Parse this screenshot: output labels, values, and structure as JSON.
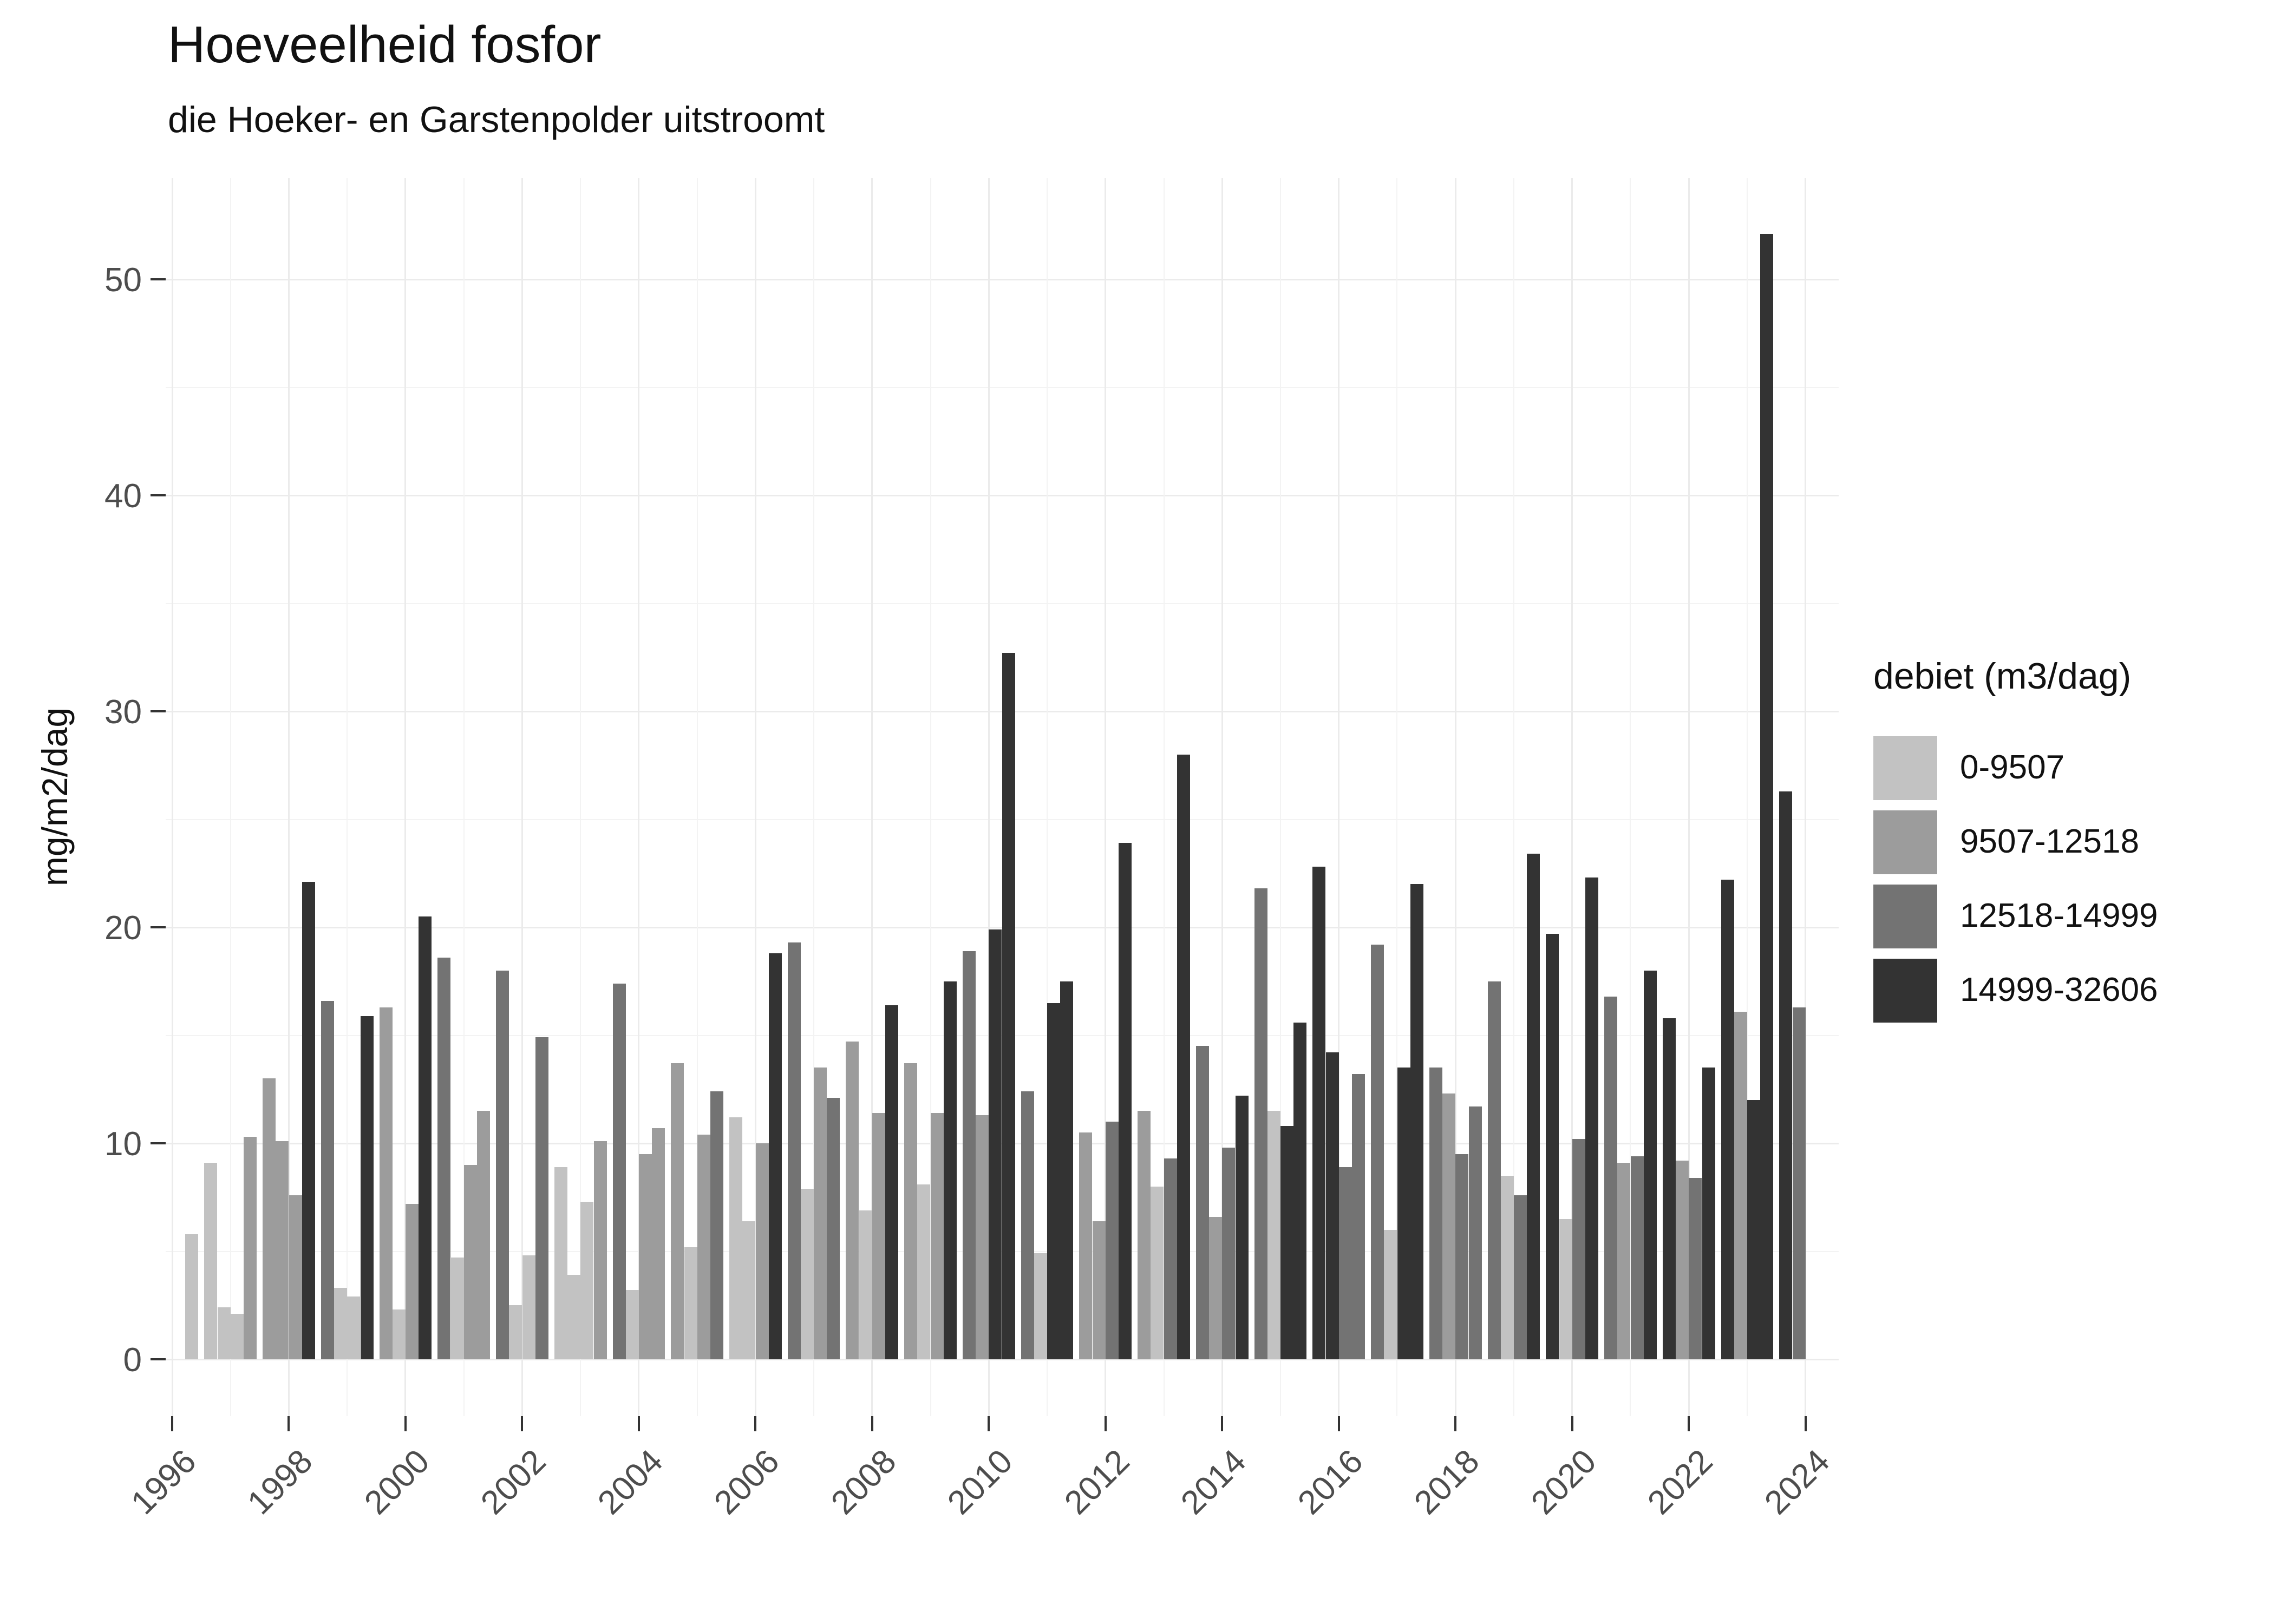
{
  "chart_data": {
    "type": "bar",
    "title": "Hoeveelheid fosfor",
    "subtitle": "die Hoeker- en Garstenpolder uitstroomt",
    "ylabel": "mg/m2/dag",
    "xlabel": "",
    "grid": "on",
    "legend_position": "right",
    "legend_title": "debiet (m3/dag)",
    "legend": {
      "items": [
        {
          "label": "0-9507",
          "color": "#c2c2c2"
        },
        {
          "label": "9507-12518",
          "color": "#9c9c9c"
        },
        {
          "label": "12518-14999",
          "color": "#737373"
        },
        {
          "label": "14999-32606",
          "color": "#333333"
        }
      ]
    },
    "x_ticks": [
      1996,
      1998,
      2000,
      2002,
      2004,
      2006,
      2008,
      2010,
      2012,
      2014,
      2016,
      2018,
      2020,
      2022,
      2024
    ],
    "x_minor": [
      1997,
      1999,
      2001,
      2003,
      2005,
      2007,
      2009,
      2011,
      2013,
      2015,
      2017,
      2019,
      2021,
      2023
    ],
    "y_ticks": [
      0,
      10,
      20,
      30,
      40,
      50
    ],
    "y_minor": [
      5,
      15,
      25,
      35,
      45
    ],
    "ylim": [
      0,
      54.7
    ],
    "xlim": [
      1995.9,
      2024.55
    ],
    "series": [
      {
        "year": 1996,
        "bars": [
          {
            "slot": 3,
            "value": 5.8,
            "cat": 0
          }
        ]
      },
      {
        "year": 1997,
        "bars": [
          {
            "slot": 0,
            "value": 9.1,
            "cat": 0
          },
          {
            "slot": 1,
            "value": 2.4,
            "cat": 0
          },
          {
            "slot": 2,
            "value": 2.1,
            "cat": 0
          },
          {
            "slot": 3,
            "value": 10.3,
            "cat": 1
          }
        ]
      },
      {
        "year": 1998,
        "bars": [
          {
            "slot": 0,
            "value": 13.0,
            "cat": 1
          },
          {
            "slot": 1,
            "value": 10.1,
            "cat": 1
          },
          {
            "slot": 2,
            "value": 7.6,
            "cat": 1
          },
          {
            "slot": 3,
            "value": 22.1,
            "cat": 3
          }
        ]
      },
      {
        "year": 1999,
        "bars": [
          {
            "slot": 0,
            "value": 16.6,
            "cat": 2
          },
          {
            "slot": 1,
            "value": 3.3,
            "cat": 0
          },
          {
            "slot": 2,
            "value": 2.9,
            "cat": 0
          },
          {
            "slot": 3,
            "value": 15.9,
            "cat": 3
          }
        ]
      },
      {
        "year": 2000,
        "bars": [
          {
            "slot": 0,
            "value": 16.3,
            "cat": 1
          },
          {
            "slot": 1,
            "value": 2.3,
            "cat": 0
          },
          {
            "slot": 2,
            "value": 7.2,
            "cat": 1
          },
          {
            "slot": 3,
            "value": 20.5,
            "cat": 3
          }
        ]
      },
      {
        "year": 2001,
        "bars": [
          {
            "slot": 0,
            "value": 18.6,
            "cat": 2
          },
          {
            "slot": 1,
            "value": 4.7,
            "cat": 0
          },
          {
            "slot": 2,
            "value": 9.0,
            "cat": 1
          },
          {
            "slot": 3,
            "value": 11.5,
            "cat": 1
          }
        ]
      },
      {
        "year": 2002,
        "bars": [
          {
            "slot": 0,
            "value": 18.0,
            "cat": 2
          },
          {
            "slot": 1,
            "value": 2.5,
            "cat": 0
          },
          {
            "slot": 2,
            "value": 4.8,
            "cat": 0
          },
          {
            "slot": 3,
            "value": 14.9,
            "cat": 2
          }
        ]
      },
      {
        "year": 2003,
        "bars": [
          {
            "slot": 0,
            "value": 8.9,
            "cat": 0
          },
          {
            "slot": 1,
            "value": 3.9,
            "cat": 0
          },
          {
            "slot": 2,
            "value": 7.3,
            "cat": 0
          },
          {
            "slot": 3,
            "value": 10.1,
            "cat": 1
          }
        ]
      },
      {
        "year": 2004,
        "bars": [
          {
            "slot": 0,
            "value": 17.4,
            "cat": 2
          },
          {
            "slot": 1,
            "value": 3.2,
            "cat": 0
          },
          {
            "slot": 2,
            "value": 9.5,
            "cat": 1
          },
          {
            "slot": 3,
            "value": 10.7,
            "cat": 1
          }
        ]
      },
      {
        "year": 2005,
        "bars": [
          {
            "slot": 0,
            "value": 13.7,
            "cat": 1
          },
          {
            "slot": 1,
            "value": 5.2,
            "cat": 0
          },
          {
            "slot": 2,
            "value": 10.4,
            "cat": 1
          },
          {
            "slot": 3,
            "value": 12.4,
            "cat": 2
          }
        ]
      },
      {
        "year": 2006,
        "bars": [
          {
            "slot": 0,
            "value": 11.2,
            "cat": 0
          },
          {
            "slot": 1,
            "value": 6.4,
            "cat": 0
          },
          {
            "slot": 2,
            "value": 10.0,
            "cat": 1
          },
          {
            "slot": 3,
            "value": 18.8,
            "cat": 3
          }
        ]
      },
      {
        "year": 2007,
        "bars": [
          {
            "slot": 0,
            "value": 19.3,
            "cat": 2
          },
          {
            "slot": 1,
            "value": 7.9,
            "cat": 0
          },
          {
            "slot": 2,
            "value": 13.5,
            "cat": 1
          },
          {
            "slot": 3,
            "value": 12.1,
            "cat": 2
          }
        ]
      },
      {
        "year": 2008,
        "bars": [
          {
            "slot": 0,
            "value": 14.7,
            "cat": 1
          },
          {
            "slot": 1,
            "value": 6.9,
            "cat": 0
          },
          {
            "slot": 2,
            "value": 11.4,
            "cat": 1
          },
          {
            "slot": 3,
            "value": 16.4,
            "cat": 3
          }
        ]
      },
      {
        "year": 2009,
        "bars": [
          {
            "slot": 0,
            "value": 13.7,
            "cat": 1
          },
          {
            "slot": 1,
            "value": 8.1,
            "cat": 0
          },
          {
            "slot": 2,
            "value": 11.4,
            "cat": 1
          },
          {
            "slot": 3,
            "value": 17.5,
            "cat": 3
          }
        ]
      },
      {
        "year": 2010,
        "bars": [
          {
            "slot": 0,
            "value": 18.9,
            "cat": 2
          },
          {
            "slot": 1,
            "value": 11.3,
            "cat": 1
          },
          {
            "slot": 2,
            "value": 19.9,
            "cat": 3
          },
          {
            "slot": 3,
            "value": 32.7,
            "cat": 3
          }
        ]
      },
      {
        "year": 2011,
        "bars": [
          {
            "slot": 0,
            "value": 12.4,
            "cat": 2
          },
          {
            "slot": 1,
            "value": 4.9,
            "cat": 0
          },
          {
            "slot": 2,
            "value": 16.5,
            "cat": 3
          },
          {
            "slot": 3,
            "value": 17.5,
            "cat": 3
          }
        ]
      },
      {
        "year": 2012,
        "bars": [
          {
            "slot": 0,
            "value": 10.5,
            "cat": 1
          },
          {
            "slot": 1,
            "value": 6.4,
            "cat": 1
          },
          {
            "slot": 2,
            "value": 11.0,
            "cat": 2
          },
          {
            "slot": 3,
            "value": 23.9,
            "cat": 3
          }
        ]
      },
      {
        "year": 2013,
        "bars": [
          {
            "slot": 0,
            "value": 11.5,
            "cat": 1
          },
          {
            "slot": 1,
            "value": 8.0,
            "cat": 0
          },
          {
            "slot": 2,
            "value": 9.3,
            "cat": 2
          },
          {
            "slot": 3,
            "value": 28.0,
            "cat": 3
          }
        ]
      },
      {
        "year": 2014,
        "bars": [
          {
            "slot": 0,
            "value": 14.5,
            "cat": 2
          },
          {
            "slot": 1,
            "value": 6.6,
            "cat": 1
          },
          {
            "slot": 2,
            "value": 9.8,
            "cat": 2
          },
          {
            "slot": 3,
            "value": 12.2,
            "cat": 3
          }
        ]
      },
      {
        "year": 2015,
        "bars": [
          {
            "slot": 0,
            "value": 21.8,
            "cat": 2
          },
          {
            "slot": 1,
            "value": 11.5,
            "cat": 0
          },
          {
            "slot": 2,
            "value": 10.8,
            "cat": 3
          },
          {
            "slot": 3,
            "value": 15.6,
            "cat": 3
          }
        ]
      },
      {
        "year": 2016,
        "bars": [
          {
            "slot": 0,
            "value": 22.8,
            "cat": 3
          },
          {
            "slot": 1,
            "value": 14.2,
            "cat": 3
          },
          {
            "slot": 2,
            "value": 8.9,
            "cat": 2
          },
          {
            "slot": 3,
            "value": 13.2,
            "cat": 2
          }
        ]
      },
      {
        "year": 2017,
        "bars": [
          {
            "slot": 0,
            "value": 19.2,
            "cat": 2
          },
          {
            "slot": 1,
            "value": 6.0,
            "cat": 0
          },
          {
            "slot": 2,
            "value": 13.5,
            "cat": 3
          },
          {
            "slot": 3,
            "value": 22.0,
            "cat": 3
          }
        ]
      },
      {
        "year": 2018,
        "bars": [
          {
            "slot": 0,
            "value": 13.5,
            "cat": 2
          },
          {
            "slot": 1,
            "value": 12.3,
            "cat": 1
          },
          {
            "slot": 2,
            "value": 9.5,
            "cat": 2
          },
          {
            "slot": 3,
            "value": 11.7,
            "cat": 2
          }
        ]
      },
      {
        "year": 2019,
        "bars": [
          {
            "slot": 0,
            "value": 17.5,
            "cat": 2
          },
          {
            "slot": 1,
            "value": 8.5,
            "cat": 0
          },
          {
            "slot": 2,
            "value": 7.6,
            "cat": 2
          },
          {
            "slot": 3,
            "value": 23.4,
            "cat": 3
          }
        ]
      },
      {
        "year": 2020,
        "bars": [
          {
            "slot": 0,
            "value": 19.7,
            "cat": 3
          },
          {
            "slot": 1,
            "value": 6.5,
            "cat": 0
          },
          {
            "slot": 2,
            "value": 10.2,
            "cat": 2
          },
          {
            "slot": 3,
            "value": 22.3,
            "cat": 3
          }
        ]
      },
      {
        "year": 2021,
        "bars": [
          {
            "slot": 0,
            "value": 16.8,
            "cat": 2
          },
          {
            "slot": 1,
            "value": 9.1,
            "cat": 1
          },
          {
            "slot": 2,
            "value": 9.4,
            "cat": 2
          },
          {
            "slot": 3,
            "value": 18.0,
            "cat": 3
          }
        ]
      },
      {
        "year": 2022,
        "bars": [
          {
            "slot": 0,
            "value": 15.8,
            "cat": 3
          },
          {
            "slot": 1,
            "value": 9.2,
            "cat": 1
          },
          {
            "slot": 2,
            "value": 8.4,
            "cat": 2
          },
          {
            "slot": 3,
            "value": 13.5,
            "cat": 3
          }
        ]
      },
      {
        "year": 2023,
        "bars": [
          {
            "slot": 0,
            "value": 22.2,
            "cat": 3
          },
          {
            "slot": 1,
            "value": 16.1,
            "cat": 1
          },
          {
            "slot": 2,
            "value": 12.0,
            "cat": 3
          },
          {
            "slot": 3,
            "value": 52.1,
            "cat": 3
          }
        ]
      },
      {
        "year": 2024,
        "bars": [
          {
            "slot": 0,
            "value": 26.3,
            "cat": 3
          },
          {
            "slot": 1,
            "value": 16.3,
            "cat": 2
          }
        ]
      }
    ]
  }
}
